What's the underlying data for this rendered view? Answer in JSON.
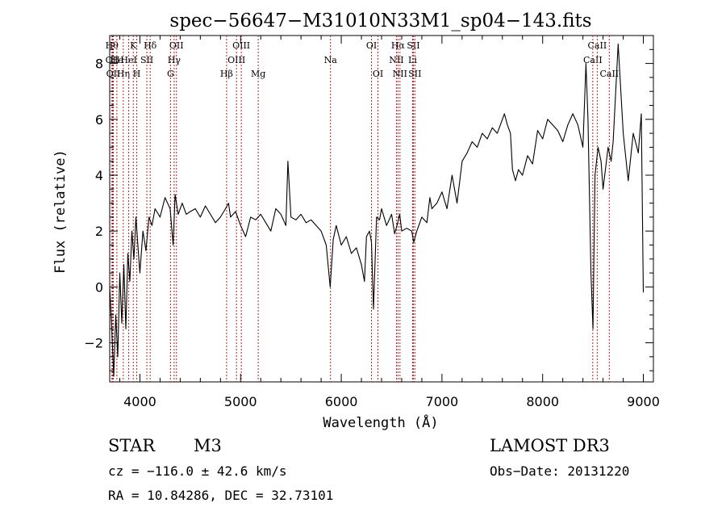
{
  "chart_data": {
    "type": "line",
    "title": "spec−56647−M31010N33M1_sp04−143.fits",
    "xlabel": "Wavelength (Å)",
    "ylabel": "Flux (relative)",
    "xlim": [
      3700,
      9100
    ],
    "ylim": [
      -3.4,
      9.0
    ],
    "xticks": [
      4000,
      5000,
      6000,
      7000,
      8000,
      9000
    ],
    "yticks": [
      -2,
      0,
      2,
      4,
      6,
      8
    ],
    "grid": false,
    "series": [
      {
        "x": [
          3700,
          3720,
          3740,
          3760,
          3780,
          3800,
          3820,
          3840,
          3860,
          3880,
          3900,
          3920,
          3940,
          3960,
          3980,
          4000,
          4030,
          4060,
          4090,
          4120,
          4150,
          4200,
          4250,
          4300,
          4330,
          4350,
          4380,
          4420,
          4460,
          4500,
          4550,
          4600,
          4650,
          4700,
          4750,
          4800,
          4850,
          4880,
          4900,
          4950,
          5000,
          5050,
          5100,
          5150,
          5200,
          5250,
          5300,
          5350,
          5400,
          5450,
          5470,
          5500,
          5550,
          5600,
          5650,
          5700,
          5750,
          5800,
          5850,
          5890,
          5920,
          5950,
          6000,
          6050,
          6100,
          6150,
          6200,
          6230,
          6250,
          6280,
          6300,
          6320,
          6350,
          6380,
          6400,
          6450,
          6500,
          6530,
          6560,
          6580,
          6600,
          6650,
          6700,
          6720,
          6750,
          6800,
          6850,
          6880,
          6900,
          6950,
          7000,
          7050,
          7100,
          7150,
          7200,
          7250,
          7300,
          7350,
          7400,
          7450,
          7500,
          7550,
          7600,
          7620,
          7650,
          7680,
          7700,
          7730,
          7760,
          7800,
          7850,
          7900,
          7950,
          8000,
          8050,
          8100,
          8150,
          8200,
          8250,
          8300,
          8350,
          8400,
          8430,
          8450,
          8480,
          8500,
          8520,
          8550,
          8580,
          8600,
          8650,
          8680,
          8700,
          8750,
          8800,
          8850,
          8900,
          8950,
          8980,
          9000
        ],
        "y": [
          0.0,
          -1.5,
          -3.2,
          -1.0,
          -2.5,
          0.5,
          -1.3,
          0.8,
          -1.5,
          1.2,
          0.2,
          2.0,
          1.0,
          2.5,
          1.5,
          0.5,
          2.0,
          1.3,
          2.5,
          2.2,
          2.8,
          2.5,
          3.2,
          2.8,
          1.5,
          3.3,
          2.6,
          3.0,
          2.6,
          2.7,
          2.8,
          2.5,
          2.9,
          2.6,
          2.3,
          2.5,
          2.8,
          3.0,
          2.5,
          2.7,
          2.2,
          1.8,
          2.5,
          2.4,
          2.6,
          2.3,
          2.0,
          2.8,
          2.6,
          2.2,
          4.5,
          2.5,
          2.4,
          2.6,
          2.3,
          2.4,
          2.2,
          2.0,
          1.5,
          0.0,
          1.7,
          2.2,
          1.5,
          1.8,
          1.2,
          1.4,
          0.8,
          0.2,
          1.8,
          2.0,
          1.6,
          -0.8,
          2.5,
          2.4,
          2.8,
          2.2,
          2.6,
          1.9,
          2.3,
          2.6,
          2.0,
          2.1,
          2.0,
          1.6,
          2.0,
          2.5,
          2.3,
          3.2,
          2.8,
          3.0,
          3.4,
          2.8,
          4.0,
          3.0,
          4.5,
          4.8,
          5.2,
          5.0,
          5.5,
          5.3,
          5.7,
          5.5,
          6.0,
          6.2,
          5.8,
          5.5,
          4.2,
          3.8,
          4.2,
          4.0,
          4.7,
          4.4,
          5.6,
          5.3,
          6.0,
          5.8,
          5.6,
          5.2,
          5.8,
          6.2,
          5.8,
          5.0,
          8.0,
          6.0,
          0.5,
          -1.5,
          4.0,
          5.0,
          4.5,
          3.5,
          5.0,
          4.5,
          5.2,
          8.7,
          5.5,
          3.8,
          5.5,
          4.8,
          6.2,
          -0.2
        ]
      }
    ],
    "line_marks": [
      {
        "x": 3722,
        "label": "Hθ",
        "row": 0
      },
      {
        "x": 3728,
        "label": "OII",
        "row": 1
      },
      {
        "x": 3736,
        "label": "OII",
        "row": 2
      },
      {
        "x": 3771,
        "label": "He",
        "row": 1
      },
      {
        "x": 3835,
        "label": "Hη",
        "row": 2
      },
      {
        "x": 3889,
        "label": "HeI",
        "row": 1
      },
      {
        "x": 3934,
        "label": "K",
        "row": 0
      },
      {
        "x": 3969,
        "label": "H",
        "row": 2
      },
      {
        "x": 4069,
        "label": "SII",
        "row": 1
      },
      {
        "x": 4102,
        "label": "Hδ",
        "row": 0
      },
      {
        "x": 4304,
        "label": "G",
        "row": 2
      },
      {
        "x": 4340,
        "label": "Hγ",
        "row": 1
      },
      {
        "x": 4363,
        "label": "OII",
        "row": 0
      },
      {
        "x": 4861,
        "label": "Hβ",
        "row": 2
      },
      {
        "x": 4959,
        "label": "OIII",
        "row": 1
      },
      {
        "x": 5007,
        "label": "OIII",
        "row": 0
      },
      {
        "x": 5175,
        "label": "Mg",
        "row": 2
      },
      {
        "x": 5893,
        "label": "Na",
        "row": 1
      },
      {
        "x": 6300,
        "label": "OI",
        "row": 0
      },
      {
        "x": 6364,
        "label": "OI",
        "row": 2
      },
      {
        "x": 6548,
        "label": "NII",
        "row": 1
      },
      {
        "x": 6563,
        "label": "Hα",
        "row": 0
      },
      {
        "x": 6583,
        "label": "NII",
        "row": 2
      },
      {
        "x": 6708,
        "label": "Li",
        "row": 1
      },
      {
        "x": 6716,
        "label": "SII",
        "row": 0
      },
      {
        "x": 6731,
        "label": "SII",
        "row": 2
      },
      {
        "x": 8498,
        "label": "CaII",
        "row": 1
      },
      {
        "x": 8542,
        "label": "CaII",
        "row": 0
      },
      {
        "x": 8662,
        "label": "CaII",
        "row": 2
      }
    ]
  },
  "info": {
    "class": "STAR",
    "subclass": "M3",
    "survey": "LAMOST DR3",
    "cz": "cz = −116.0 ± 42.6 km/s",
    "obs_date": "Obs−Date: 20131220",
    "radec": "RA =  10.84286, DEC =  32.73101"
  }
}
